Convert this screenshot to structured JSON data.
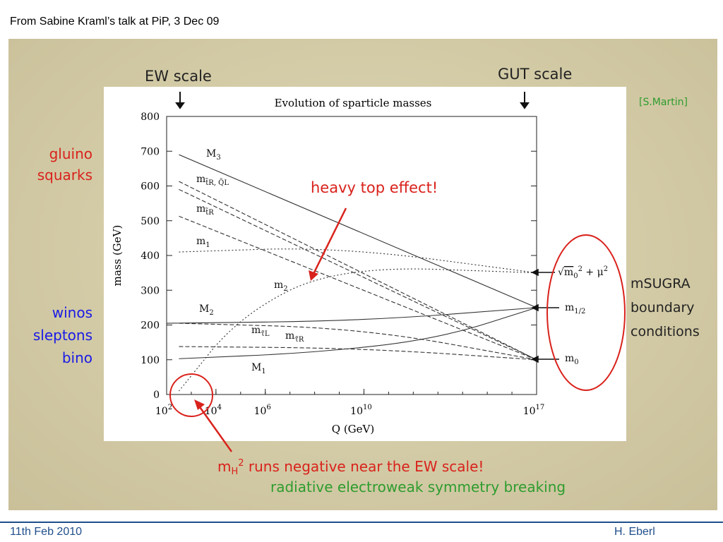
{
  "header": {
    "text": "From Sabine Kraml’s talk at PiP,  3 Dec 09"
  },
  "footer": {
    "date": "11th Feb 2010",
    "author": "H. Eberl"
  },
  "colors": {
    "panel": "#d6cfac",
    "red": "#d9221c",
    "blue": "#1a1ae6",
    "green": "#2e9c2e",
    "footer": "#1f4e8c"
  },
  "annotations": {
    "ew_scale": "EW scale",
    "gut_scale": "GUT scale",
    "credit": "[S.Martin]",
    "heavy_top": "heavy top effect!",
    "gluino": "gluino",
    "squarks": "squarks",
    "winos": "winos",
    "sleptons": "sleptons",
    "bino": "bino",
    "msugra1": "mSUGRA",
    "msugra2": "boundary",
    "msugra3": "conditions",
    "mh_neg_pre": "m",
    "mh_neg_sub": "H",
    "mh_neg_sup": "2",
    "mh_neg_post": " runs negative near the EW scale!",
    "rewsb": "radiative electroweak symmetry breaking"
  },
  "right_labels": {
    "sqrt_m": "m",
    "sqrt_rest": " + μ",
    "m_half": "m",
    "m_half_sub": "1/2",
    "m0": "m",
    "m0_sub": "0"
  },
  "chart_data": {
    "type": "line",
    "title": "Evolution of sparticle masses",
    "xlabel": "Q (GeV)",
    "ylabel": "mass (GeV)",
    "x_log10_range": [
      2,
      17
    ],
    "x_ticks": [
      {
        "exp": 2,
        "base": "10",
        "sup": "2"
      },
      {
        "exp": 4,
        "base": "10",
        "sup": "4"
      },
      {
        "exp": 6,
        "base": "10",
        "sup": "6"
      },
      {
        "exp": 10,
        "base": "10",
        "sup": "10"
      },
      {
        "exp": 17,
        "base": "10",
        "sup": "17"
      }
    ],
    "ylim": [
      0,
      800
    ],
    "y_ticks": [
      "0",
      "100",
      "200",
      "300",
      "400",
      "500",
      "600",
      "700",
      "800"
    ],
    "series": [
      {
        "name": "M3",
        "style": "solid",
        "points": [
          [
            2.5,
            690
          ],
          [
            17,
            250
          ]
        ]
      },
      {
        "name": "M2",
        "style": "solid",
        "points": [
          [
            2,
            205
          ],
          [
            10,
            212
          ],
          [
            17,
            250
          ]
        ]
      },
      {
        "name": "M1",
        "style": "solid",
        "points": [
          [
            2.5,
            103
          ],
          [
            8,
            120
          ],
          [
            13,
            160
          ],
          [
            17,
            250
          ]
        ]
      },
      {
        "name": "m_tR,QL",
        "style": "dashed",
        "points": [
          [
            2.5,
            613
          ],
          [
            17,
            100
          ]
        ]
      },
      {
        "name": "m_bR",
        "style": "dashed",
        "points": [
          [
            2.5,
            590
          ],
          [
            17,
            100
          ]
        ]
      },
      {
        "name": "m_tR",
        "style": "dashed",
        "points": [
          [
            2.5,
            513
          ],
          [
            17,
            100
          ]
        ]
      },
      {
        "name": "m1",
        "style": "dotted",
        "points": [
          [
            2.5,
            410
          ],
          [
            9,
            425
          ],
          [
            17,
            350
          ]
        ]
      },
      {
        "name": "m2",
        "style": "dotted",
        "points": [
          [
            2.5,
            10
          ],
          [
            5,
            230
          ],
          [
            9,
            370
          ],
          [
            17,
            350
          ]
        ]
      },
      {
        "name": "m_tauL",
        "style": "dashed",
        "points": [
          [
            2.5,
            205
          ],
          [
            10,
            190
          ],
          [
            17,
            100
          ]
        ]
      },
      {
        "name": "m_tauR",
        "style": "dashed",
        "points": [
          [
            2.5,
            138
          ],
          [
            10,
            133
          ],
          [
            17,
            100
          ]
        ]
      }
    ],
    "curve_labels": [
      {
        "id": "M3",
        "text": "M",
        "sub": "3"
      },
      {
        "id": "mQ",
        "text": "m",
        "sub": "t̃R, Q̃L"
      },
      {
        "id": "mtR",
        "text": "m",
        "sub": "t̃R"
      },
      {
        "id": "m1",
        "text": "m",
        "sub": "1"
      },
      {
        "id": "m2",
        "text": "m",
        "sub": "2"
      },
      {
        "id": "M2",
        "text": "M",
        "sub": "2"
      },
      {
        "id": "mtauL",
        "text": "m",
        "sub": "τ̃L"
      },
      {
        "id": "mtauR",
        "text": "m",
        "sub": "τ̃R"
      },
      {
        "id": "M1",
        "text": "M",
        "sub": "1"
      }
    ]
  }
}
